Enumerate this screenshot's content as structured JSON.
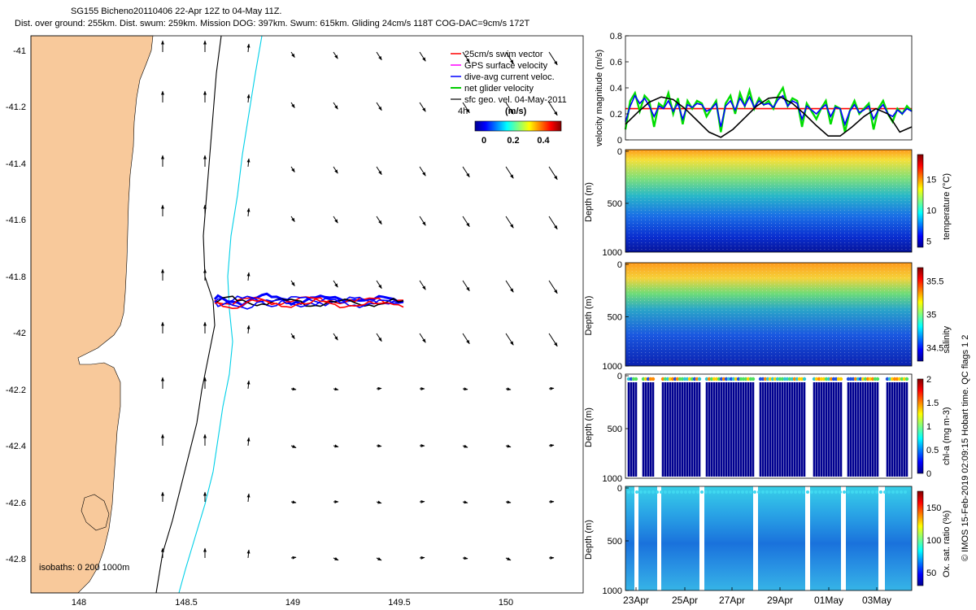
{
  "title": {
    "line1": "SG155 Bicheno20110406 22-Apr 12Z to 04-May 11Z.",
    "line2": "Dist. over ground: 255km. Dist. swum: 259km. Mission DOG: 397km. Swum: 615km. Gliding 24cm/s 118T COG-DAC=9cm/s 172T"
  },
  "map": {
    "xticks": [
      "148",
      "148.5",
      "149",
      "149.5",
      "150"
    ],
    "yticks": [
      "-41",
      "-41.2",
      "-41.4",
      "-41.6",
      "-41.8",
      "-42",
      "-42.2",
      "-42.4",
      "-42.6",
      "-42.8"
    ],
    "legend": [
      {
        "label": "25cm/s swim vector",
        "color": "#ff0000"
      },
      {
        "label": "GPS surface velocity",
        "color": "#ff00ff"
      },
      {
        "label": "dive-avg current veloc.",
        "color": "#0000ff"
      },
      {
        "label": "net glider velocity",
        "color": "#00cc00"
      },
      {
        "label": "sfc geo. vel. 04-May-2011",
        "color": "#000000"
      }
    ],
    "duration_label": "4h",
    "colorbar": {
      "title": "(m/s)",
      "ticks": [
        "0",
        "0.2",
        "0.4"
      ]
    },
    "isobaths_label": "isobaths: 0   200  1000m",
    "colors": {
      "land": "#f8c99b",
      "iso200": "#000000",
      "iso1000": "#00d0e8"
    }
  },
  "side_note": "© IMOS 15-Feb-2019 02:09:15 Hobart time. QC flags 1  2",
  "chart_data": [
    {
      "type": "line",
      "title": "",
      "ylabel": "velocity magnitude (m/s)",
      "yticks": [
        "0",
        "0.2",
        "0.4",
        "0.6",
        "0.8"
      ],
      "ylim": [
        0,
        0.8
      ],
      "xlim": [
        0,
        12
      ],
      "series": [
        {
          "color": "#ff0000",
          "x": [
            0,
            12
          ],
          "y": [
            0.24,
            0.24
          ]
        },
        {
          "color": "#00dd00",
          "x": [
            0,
            0.2,
            0.4,
            0.6,
            0.8,
            1,
            1.2,
            1.4,
            1.6,
            1.8,
            2,
            2.2,
            2.4,
            2.6,
            2.8,
            3,
            3.2,
            3.4,
            3.6,
            3.8,
            4,
            4.2,
            4.4,
            4.6,
            4.8,
            5,
            5.2,
            5.4,
            5.6,
            5.8,
            6,
            6.2,
            6.4,
            6.6,
            6.8,
            7,
            7.2,
            7.4,
            7.6,
            7.8,
            8,
            8.2,
            8.4,
            8.6,
            8.8,
            9,
            9.2,
            9.4,
            9.6,
            9.8,
            10,
            10.2,
            10.4,
            10.6,
            10.8,
            11,
            11.2,
            11.4,
            11.6,
            11.8,
            12
          ],
          "y": [
            0.08,
            0.3,
            0.36,
            0.22,
            0.34,
            0.3,
            0.1,
            0.28,
            0.25,
            0.36,
            0.2,
            0.32,
            0.12,
            0.3,
            0.24,
            0.3,
            0.28,
            0.18,
            0.24,
            0.3,
            0.06,
            0.28,
            0.34,
            0.2,
            0.36,
            0.26,
            0.38,
            0.24,
            0.32,
            0.27,
            0.3,
            0.24,
            0.34,
            0.4,
            0.26,
            0.32,
            0.3,
            0.1,
            0.28,
            0.22,
            0.16,
            0.24,
            0.3,
            0.12,
            0.26,
            0.24,
            0.06,
            0.22,
            0.3,
            0.2,
            0.24,
            0.28,
            0.08,
            0.24,
            0.3,
            0.2,
            0.14,
            0.24,
            0.2,
            0.26,
            0.22
          ]
        },
        {
          "color": "#0000ff",
          "x": [
            0,
            0.2,
            0.4,
            0.6,
            0.8,
            1,
            1.2,
            1.4,
            1.6,
            1.8,
            2,
            2.2,
            2.4,
            2.6,
            2.8,
            3,
            3.2,
            3.4,
            3.6,
            3.8,
            4,
            4.2,
            4.4,
            4.6,
            4.8,
            5,
            5.2,
            5.4,
            5.6,
            5.8,
            6,
            6.2,
            6.4,
            6.6,
            6.8,
            7,
            7.2,
            7.4,
            7.6,
            7.8,
            8,
            8.2,
            8.4,
            8.6,
            8.8,
            9,
            9.2,
            9.4,
            9.6,
            9.8,
            10,
            10.2,
            10.4,
            10.6,
            10.8,
            11,
            11.2,
            11.4,
            11.6,
            11.8,
            12
          ],
          "y": [
            0.14,
            0.26,
            0.34,
            0.28,
            0.32,
            0.26,
            0.18,
            0.26,
            0.24,
            0.3,
            0.22,
            0.28,
            0.16,
            0.27,
            0.25,
            0.28,
            0.27,
            0.22,
            0.24,
            0.28,
            0.1,
            0.26,
            0.3,
            0.23,
            0.32,
            0.26,
            0.33,
            0.25,
            0.3,
            0.27,
            0.28,
            0.25,
            0.31,
            0.34,
            0.26,
            0.3,
            0.28,
            0.16,
            0.26,
            0.23,
            0.2,
            0.24,
            0.27,
            0.18,
            0.25,
            0.24,
            0.12,
            0.22,
            0.27,
            0.21,
            0.23,
            0.26,
            0.16,
            0.23,
            0.27,
            0.2,
            0.18,
            0.23,
            0.2,
            0.24,
            0.22
          ]
        },
        {
          "color": "#000000",
          "x": [
            0,
            0.5,
            1,
            1.5,
            2,
            2.5,
            3,
            3.5,
            4,
            4.5,
            5,
            5.5,
            6,
            6.5,
            7,
            7.5,
            8,
            8.5,
            9,
            9.5,
            10,
            10.5,
            11,
            11.5,
            12
          ],
          "y": [
            0.12,
            0.21,
            0.29,
            0.33,
            0.31,
            0.24,
            0.15,
            0.06,
            0.02,
            0.08,
            0.17,
            0.26,
            0.32,
            0.33,
            0.28,
            0.2,
            0.11,
            0.03,
            0.03,
            0.1,
            0.18,
            0.24,
            0.2,
            0.06,
            0.1
          ]
        }
      ]
    },
    {
      "type": "heatmap",
      "ylabel": "Depth (m)",
      "yticks": [
        "0",
        "500",
        "1000"
      ],
      "ylim": [
        1000,
        0
      ],
      "cbar_label": "temperature (°C)",
      "cbar_ticks": [
        "5",
        "10",
        "15"
      ],
      "clim": [
        4,
        19
      ]
    },
    {
      "type": "heatmap",
      "ylabel": "Depth (m)",
      "yticks": [
        "0",
        "500",
        "1000"
      ],
      "ylim": [
        1000,
        0
      ],
      "cbar_label": "salinity",
      "cbar_ticks": [
        "34.5",
        "35",
        "35.5"
      ],
      "clim": [
        34.3,
        35.7
      ]
    },
    {
      "type": "heatmap",
      "ylabel": "Depth (m)",
      "yticks": [
        "0",
        "500",
        "1000"
      ],
      "ylim": [
        1000,
        0
      ],
      "cbar_label": "chl-a (mg m-3)",
      "cbar_ticks": [
        "0",
        "0.5",
        "1",
        "1.5",
        "2"
      ],
      "clim": [
        0,
        2
      ]
    },
    {
      "type": "heatmap",
      "ylabel": "Depth (m)",
      "yticks": [
        "0",
        "500",
        "1000"
      ],
      "ylim": [
        1000,
        0
      ],
      "cbar_label": "Ox. sat. ratio (%)",
      "cbar_ticks": [
        "50",
        "100",
        "150"
      ],
      "clim": [
        30,
        175
      ],
      "xticks": [
        "23Apr",
        "25Apr",
        "27Apr",
        "29Apr",
        "01May",
        "03May"
      ]
    }
  ]
}
